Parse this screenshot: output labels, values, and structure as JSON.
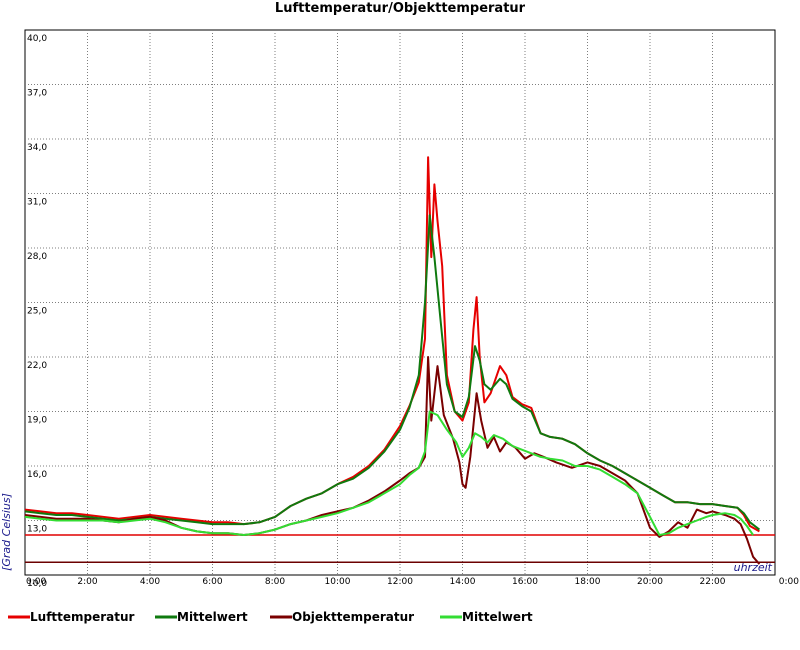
{
  "chart_data": {
    "type": "line",
    "title": "Lufttemperatur/Objekttemperatur",
    "ylabel": "[Grad Celsius]",
    "xlabel": "uhrzeit",
    "ylim": [
      10,
      40
    ],
    "yticks": [
      "10,0",
      "13,0",
      "16,0",
      "19,0",
      "22,0",
      "25,0",
      "28,0",
      "31,0",
      "34,0",
      "37,0",
      "40,0"
    ],
    "xlim": [
      0,
      24
    ],
    "xticks": [
      "0:00",
      "2:00",
      "4:00",
      "6:00",
      "8:00",
      "10:00",
      "12:00",
      "14:00",
      "16:00",
      "18:00",
      "20:00",
      "22:00",
      "0:00"
    ],
    "grid": true,
    "legend_position": "bottom",
    "reference_lines": [
      {
        "y": 12.2,
        "color": "#e00000"
      },
      {
        "y": 10.7,
        "color": "#6b0000"
      }
    ],
    "series": [
      {
        "name": "Lufttemperatur",
        "color": "#e60000",
        "x": [
          0,
          0.5,
          1,
          1.5,
          2,
          2.5,
          3,
          3.5,
          4,
          4.5,
          5,
          5.5,
          6,
          6.5,
          7,
          7.5,
          8,
          8.5,
          9,
          9.5,
          10,
          10.5,
          11,
          11.5,
          12,
          12.3,
          12.6,
          12.8,
          12.9,
          13.0,
          13.1,
          13.2,
          13.35,
          13.5,
          13.75,
          14.0,
          14.2,
          14.35,
          14.45,
          14.55,
          14.7,
          14.9,
          15.2,
          15.4,
          15.6,
          15.9,
          16.2,
          16.5,
          16.8,
          17.2,
          17.6,
          18.0,
          18.4,
          18.8,
          19.2,
          19.6,
          20.0,
          20.4,
          20.8,
          21.2,
          21.6,
          22.0,
          22.4,
          22.8,
          23.0,
          23.2,
          23.5
        ],
        "values": [
          13.6,
          13.5,
          13.4,
          13.4,
          13.3,
          13.2,
          13.1,
          13.2,
          13.3,
          13.2,
          13.1,
          13.0,
          12.9,
          12.9,
          12.8,
          12.9,
          13.2,
          13.8,
          14.2,
          14.5,
          15.0,
          15.4,
          16.0,
          16.9,
          18.2,
          19.3,
          20.6,
          23.0,
          33.0,
          27.5,
          31.5,
          29.5,
          27.0,
          21.0,
          19.0,
          18.5,
          19.5,
          23.5,
          25.3,
          22.0,
          19.5,
          20.0,
          21.5,
          21.0,
          19.8,
          19.4,
          19.2,
          17.8,
          17.6,
          17.5,
          17.2,
          16.7,
          16.3,
          16.0,
          15.6,
          15.2,
          14.8,
          14.4,
          14.0,
          14.0,
          13.9,
          13.9,
          13.8,
          13.7,
          13.3,
          12.7,
          12.4
        ]
      },
      {
        "name": "Mittelwert",
        "color": "#0f7a0f",
        "x": [
          0,
          0.5,
          1,
          1.5,
          2,
          2.5,
          3,
          3.5,
          4,
          4.5,
          5,
          5.5,
          6,
          6.5,
          7,
          7.5,
          8,
          8.5,
          9,
          9.5,
          10,
          10.5,
          11,
          11.5,
          12,
          12.3,
          12.6,
          12.8,
          12.95,
          13.1,
          13.3,
          13.5,
          13.75,
          14.0,
          14.2,
          14.4,
          14.55,
          14.7,
          14.9,
          15.2,
          15.4,
          15.6,
          15.9,
          16.2,
          16.5,
          16.8,
          17.2,
          17.6,
          18.0,
          18.4,
          18.8,
          19.2,
          19.6,
          20.0,
          20.4,
          20.8,
          21.2,
          21.6,
          22.0,
          22.4,
          22.8,
          23.0,
          23.2,
          23.5
        ],
        "values": [
          13.5,
          13.4,
          13.3,
          13.3,
          13.2,
          13.1,
          13.0,
          13.1,
          13.2,
          13.1,
          13.0,
          12.9,
          12.8,
          12.8,
          12.8,
          12.9,
          13.2,
          13.8,
          14.2,
          14.5,
          15.0,
          15.3,
          15.9,
          16.8,
          18.0,
          19.2,
          21.0,
          25.0,
          29.8,
          27.5,
          24.0,
          20.5,
          19.0,
          18.7,
          19.8,
          22.6,
          21.8,
          20.5,
          20.2,
          20.8,
          20.5,
          19.7,
          19.3,
          19.0,
          17.8,
          17.6,
          17.5,
          17.2,
          16.7,
          16.3,
          16.0,
          15.6,
          15.2,
          14.8,
          14.4,
          14.0,
          14.0,
          13.9,
          13.9,
          13.8,
          13.7,
          13.4,
          12.9,
          12.5
        ]
      },
      {
        "name": "Objekttemperatur",
        "color": "#7a0000",
        "x": [
          0,
          0.5,
          1,
          1.5,
          2,
          2.5,
          3,
          3.5,
          4,
          4.5,
          5,
          5.5,
          6,
          6.5,
          7,
          7.5,
          8,
          8.5,
          9,
          9.5,
          10,
          10.5,
          11,
          11.5,
          12,
          12.3,
          12.6,
          12.8,
          12.9,
          13.0,
          13.2,
          13.4,
          13.7,
          13.9,
          14.0,
          14.1,
          14.25,
          14.45,
          14.6,
          14.8,
          15.0,
          15.2,
          15.4,
          15.7,
          16.0,
          16.3,
          16.6,
          17.0,
          17.5,
          18.0,
          18.4,
          18.8,
          19.2,
          19.6,
          20.0,
          20.3,
          20.6,
          20.9,
          21.2,
          21.5,
          21.8,
          22.0,
          22.4,
          22.7,
          22.9,
          23.1,
          23.3,
          23.5
        ],
        "values": [
          13.3,
          13.2,
          13.1,
          13.1,
          13.1,
          13.0,
          12.9,
          13.1,
          13.2,
          13.0,
          12.6,
          12.4,
          12.3,
          12.3,
          12.2,
          12.3,
          12.5,
          12.8,
          13.0,
          13.3,
          13.5,
          13.7,
          14.1,
          14.6,
          15.2,
          15.6,
          15.9,
          16.5,
          22.0,
          18.5,
          21.5,
          18.8,
          17.5,
          16.2,
          15.0,
          14.8,
          16.5,
          20.0,
          18.5,
          17.0,
          17.6,
          16.8,
          17.3,
          17.0,
          16.4,
          16.7,
          16.5,
          16.2,
          15.9,
          16.2,
          16.0,
          15.6,
          15.2,
          14.5,
          12.6,
          12.1,
          12.4,
          12.9,
          12.6,
          13.6,
          13.4,
          13.5,
          13.3,
          13.1,
          12.8,
          12.0,
          11.0,
          10.6
        ]
      },
      {
        "name": "Mittelwert",
        "color": "#33dd33",
        "x": [
          0,
          0.5,
          1,
          1.5,
          2,
          2.5,
          3,
          3.5,
          4,
          4.5,
          5,
          5.5,
          6,
          6.5,
          7,
          7.5,
          8,
          8.5,
          9,
          9.5,
          10,
          10.5,
          11,
          11.5,
          12,
          12.3,
          12.6,
          12.8,
          12.95,
          13.2,
          13.5,
          13.8,
          14.0,
          14.2,
          14.4,
          14.6,
          14.8,
          15.0,
          15.3,
          15.6,
          15.9,
          16.2,
          16.5,
          16.8,
          17.2,
          17.6,
          18.0,
          18.4,
          18.8,
          19.2,
          19.6,
          20.0,
          20.3,
          20.6,
          20.9,
          21.2,
          21.5,
          21.8,
          22.0,
          22.4,
          22.7,
          22.9,
          23.1,
          23.3
        ],
        "values": [
          13.2,
          13.1,
          13.0,
          13.0,
          13.0,
          13.0,
          12.9,
          13.0,
          13.1,
          12.9,
          12.6,
          12.4,
          12.3,
          12.3,
          12.2,
          12.3,
          12.5,
          12.8,
          13.0,
          13.2,
          13.4,
          13.7,
          14.0,
          14.5,
          15.0,
          15.5,
          15.9,
          16.8,
          19.0,
          18.8,
          18.0,
          17.3,
          16.5,
          17.0,
          17.8,
          17.6,
          17.3,
          17.7,
          17.5,
          17.1,
          16.9,
          16.7,
          16.5,
          16.4,
          16.3,
          16.0,
          16.0,
          15.8,
          15.4,
          15.0,
          14.5,
          13.2,
          12.2,
          12.3,
          12.6,
          12.8,
          13.0,
          13.2,
          13.3,
          13.4,
          13.3,
          13.1,
          12.7,
          12.2
        ]
      }
    ]
  }
}
